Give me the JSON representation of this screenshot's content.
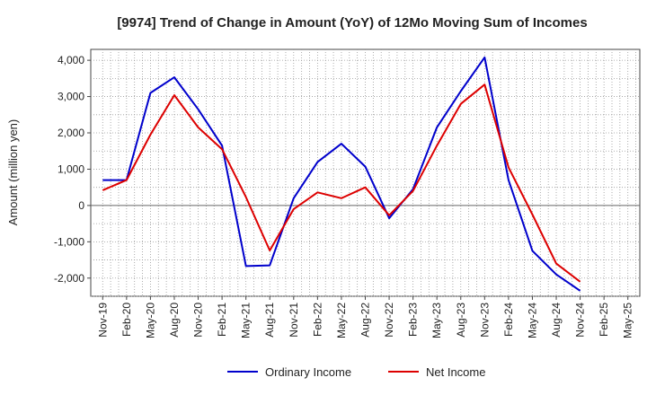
{
  "chart_data": {
    "type": "line",
    "title": "[9974]  Trend of Change in Amount (YoY) of 12Mo Moving Sum of Incomes",
    "ylabel": "Amount (million yen)",
    "xlabel": "",
    "ylim": [
      -2500,
      4300
    ],
    "yticks": [
      4000,
      3000,
      2000,
      1000,
      0,
      -1000,
      -2000
    ],
    "ytick_labels": [
      "4,000",
      "3,000",
      "2,000",
      "1,000",
      "0",
      "-1,000",
      "-2,000"
    ],
    "categories": [
      "Nov-19",
      "Feb-20",
      "May-20",
      "Aug-20",
      "Nov-20",
      "Feb-21",
      "May-21",
      "Aug-21",
      "Nov-21",
      "Feb-22",
      "May-22",
      "Aug-22",
      "Nov-22",
      "Feb-23",
      "May-23",
      "Aug-23",
      "Nov-23",
      "Feb-24",
      "May-24",
      "Aug-24",
      "Nov-24",
      "Feb-25",
      "May-25"
    ],
    "grid": true,
    "legend_position": "bottom",
    "series": [
      {
        "name": "Ordinary Income",
        "color": "#0000cc",
        "values": [
          700,
          700,
          3100,
          3530,
          2650,
          1650,
          -1670,
          -1650,
          200,
          1200,
          1700,
          1070,
          -350,
          450,
          2150,
          3150,
          4080,
          700,
          -1250,
          -1900,
          -2350,
          null,
          null
        ]
      },
      {
        "name": "Net Income",
        "color": "#dd0000",
        "values": [
          420,
          700,
          1950,
          3040,
          2150,
          1550,
          230,
          -1240,
          -100,
          360,
          200,
          500,
          -270,
          400,
          1650,
          2800,
          3330,
          1050,
          -250,
          -1600,
          -2100,
          null,
          null
        ]
      }
    ]
  }
}
